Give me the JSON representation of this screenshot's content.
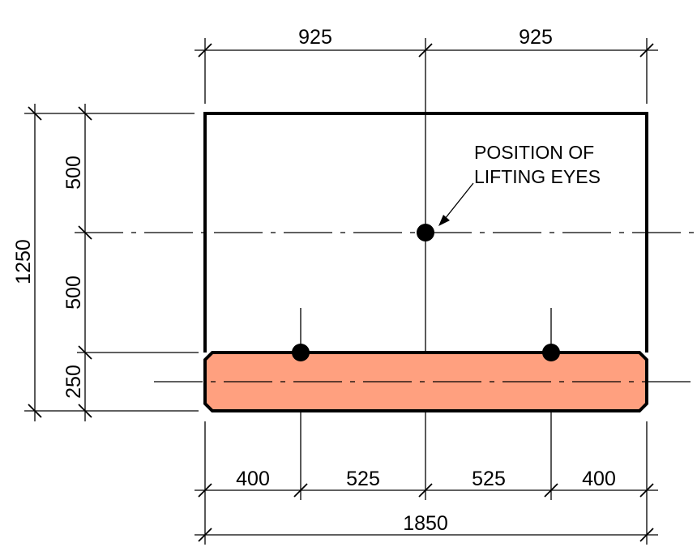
{
  "top_dimensions": {
    "left": "925",
    "right": "925"
  },
  "left_dimensions": {
    "overall": "1250",
    "upper": "500",
    "middle": "500",
    "lower": "250"
  },
  "bottom_dimensions": {
    "seg1": "400",
    "seg2": "525",
    "seg3": "525",
    "seg4": "400",
    "overall": "1850"
  },
  "annotation": {
    "line1": "POSITION OF",
    "line2": "LIFTING EYES"
  },
  "colors": {
    "base_fill": "#FFA07F",
    "line": "#000000",
    "background": "#FFFFFF"
  }
}
